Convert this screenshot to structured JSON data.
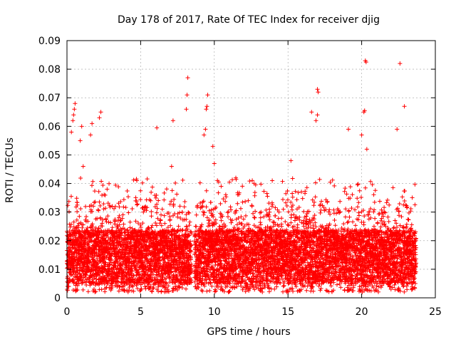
{
  "chart_data": {
    "type": "scatter",
    "title": "Day 178 of 2017, Rate Of TEC Index for receiver djig",
    "xlabel": "GPS time / hours",
    "ylabel": "ROTI / TECUs",
    "xlim": [
      0,
      25
    ],
    "ylim": [
      0,
      0.09
    ],
    "xticks": [
      0,
      5,
      10,
      15,
      20,
      25
    ],
    "xtick_labels": [
      "0",
      "5",
      "10",
      "15",
      "20",
      "25"
    ],
    "yticks": [
      0,
      0.01,
      0.02,
      0.03,
      0.04,
      0.05,
      0.06,
      0.07,
      0.08,
      0.09
    ],
    "ytick_labels": [
      "0",
      "0.01",
      "0.02",
      "0.03",
      "0.04",
      "0.05",
      "0.06",
      "0.07",
      "0.08",
      "0.09"
    ],
    "grid": true,
    "marker": "+",
    "color": "#ff0000",
    "gap_hours": [
      8.45,
      8.65
    ],
    "data_range_hours": [
      0,
      23.7
    ],
    "typical_band": [
      0.005,
      0.03
    ],
    "outliers": [
      {
        "x": 0.3,
        "y": 0.058
      },
      {
        "x": 0.4,
        "y": 0.062
      },
      {
        "x": 0.45,
        "y": 0.064
      },
      {
        "x": 0.5,
        "y": 0.066
      },
      {
        "x": 0.55,
        "y": 0.068
      },
      {
        "x": 0.9,
        "y": 0.055
      },
      {
        "x": 1.0,
        "y": 0.06
      },
      {
        "x": 1.1,
        "y": 0.046
      },
      {
        "x": 1.6,
        "y": 0.057
      },
      {
        "x": 1.7,
        "y": 0.061
      },
      {
        "x": 2.2,
        "y": 0.063
      },
      {
        "x": 2.3,
        "y": 0.065
      },
      {
        "x": 6.1,
        "y": 0.0595
      },
      {
        "x": 7.1,
        "y": 0.046
      },
      {
        "x": 7.2,
        "y": 0.062
      },
      {
        "x": 8.1,
        "y": 0.066
      },
      {
        "x": 8.15,
        "y": 0.071
      },
      {
        "x": 8.2,
        "y": 0.077
      },
      {
        "x": 9.3,
        "y": 0.057
      },
      {
        "x": 9.4,
        "y": 0.059
      },
      {
        "x": 9.45,
        "y": 0.066
      },
      {
        "x": 9.5,
        "y": 0.067
      },
      {
        "x": 9.55,
        "y": 0.071
      },
      {
        "x": 9.9,
        "y": 0.053
      },
      {
        "x": 10.0,
        "y": 0.047
      },
      {
        "x": 15.2,
        "y": 0.048
      },
      {
        "x": 16.6,
        "y": 0.065
      },
      {
        "x": 16.9,
        "y": 0.062
      },
      {
        "x": 17.0,
        "y": 0.073
      },
      {
        "x": 17.05,
        "y": 0.072
      },
      {
        "x": 17.0,
        "y": 0.064
      },
      {
        "x": 19.1,
        "y": 0.059
      },
      {
        "x": 20.0,
        "y": 0.057
      },
      {
        "x": 20.15,
        "y": 0.065
      },
      {
        "x": 20.2,
        "y": 0.0655
      },
      {
        "x": 20.25,
        "y": 0.083
      },
      {
        "x": 20.3,
        "y": 0.0825
      },
      {
        "x": 20.35,
        "y": 0.052
      },
      {
        "x": 22.4,
        "y": 0.059
      },
      {
        "x": 22.6,
        "y": 0.082
      },
      {
        "x": 22.9,
        "y": 0.067
      }
    ]
  }
}
